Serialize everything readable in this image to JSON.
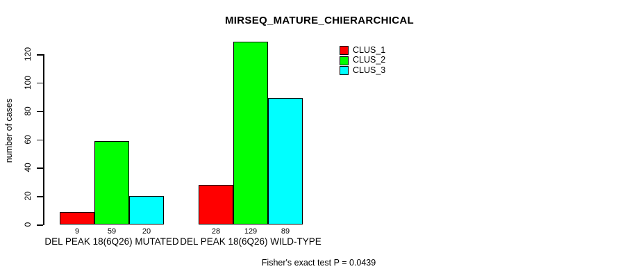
{
  "chart_data": {
    "type": "bar",
    "title": "MIRSEQ_MATURE_CHIERARCHICAL",
    "xlabel": "",
    "ylabel": "number of cases",
    "categories": [
      "DEL PEAK 18(6Q26) MUTATED",
      "DEL PEAK 18(6Q26) WILD-TYPE"
    ],
    "series": [
      {
        "name": "CLUS_1",
        "color": "#FF0000",
        "values": [
          9,
          28
        ]
      },
      {
        "name": "CLUS_2",
        "color": "#00FF00",
        "values": [
          59,
          129
        ]
      },
      {
        "name": "CLUS_3",
        "color": "#00FFFF",
        "values": [
          20,
          89
        ]
      }
    ],
    "bar_value_labels_shown": true,
    "ylim": [
      0,
      120
    ],
    "yticks": [
      0,
      20,
      40,
      60,
      80,
      100,
      120
    ],
    "grid": false,
    "legend_position": "top-right",
    "legend_entries": [
      "CLUS_1",
      "CLUS_2",
      "CLUS_3"
    ],
    "annotation": "Fisher's exact test P = 0.0439",
    "axis_color": "#000000",
    "background_color": "#FFFFFF"
  }
}
